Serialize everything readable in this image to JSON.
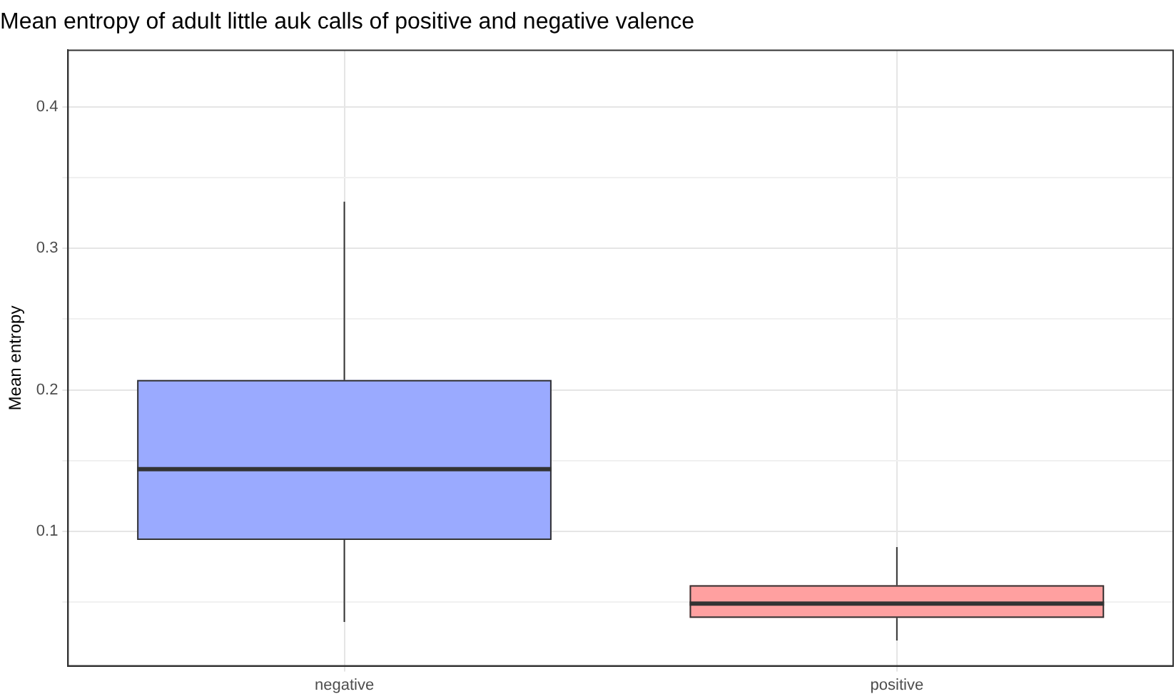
{
  "chart_data": {
    "type": "box",
    "title": "Mean entropy of adult little auk calls of positive and negative valence",
    "ylabel": "Mean entropy",
    "categories": [
      "negative",
      "positive"
    ],
    "colors": [
      "#9aaaff",
      "#ffa0a0"
    ],
    "boxes": [
      {
        "low": 0.036,
        "q1": 0.094,
        "median": 0.144,
        "q3": 0.207,
        "high": 0.333
      },
      {
        "low": 0.023,
        "q1": 0.039,
        "median": 0.049,
        "q3": 0.062,
        "high": 0.089
      }
    ],
    "ylim": [
      0.005,
      0.44
    ],
    "yticks": [
      {
        "value": 0.05,
        "label": null
      },
      0.1,
      {
        "value": 0.15,
        "label": null
      },
      0.2,
      {
        "value": 0.25,
        "label": null
      },
      0.3,
      {
        "value": 0.35,
        "label": null
      },
      0.4
    ],
    "grid": true,
    "legend": false
  }
}
